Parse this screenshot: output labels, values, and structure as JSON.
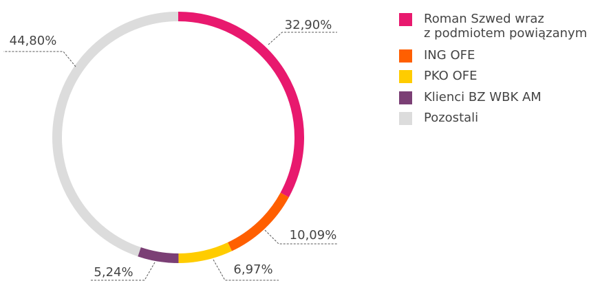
{
  "chart_data": {
    "type": "donut",
    "categories": [
      "Roman Szwed wraz\nz podmiotem powiązanym",
      "ING OFE",
      "PKO OFE",
      "Klienci BZ WBK AM",
      "Pozostali"
    ],
    "values": [
      32.9,
      10.09,
      6.97,
      5.24,
      44.8
    ],
    "value_labels": [
      "32,90%",
      "10,09%",
      "6,97%",
      "5,24%",
      "44,80%"
    ],
    "colors": [
      "#e8196e",
      "#ff5f00",
      "#ffcc00",
      "#7b3f75",
      "#dcdcdc"
    ],
    "legend": "right"
  }
}
